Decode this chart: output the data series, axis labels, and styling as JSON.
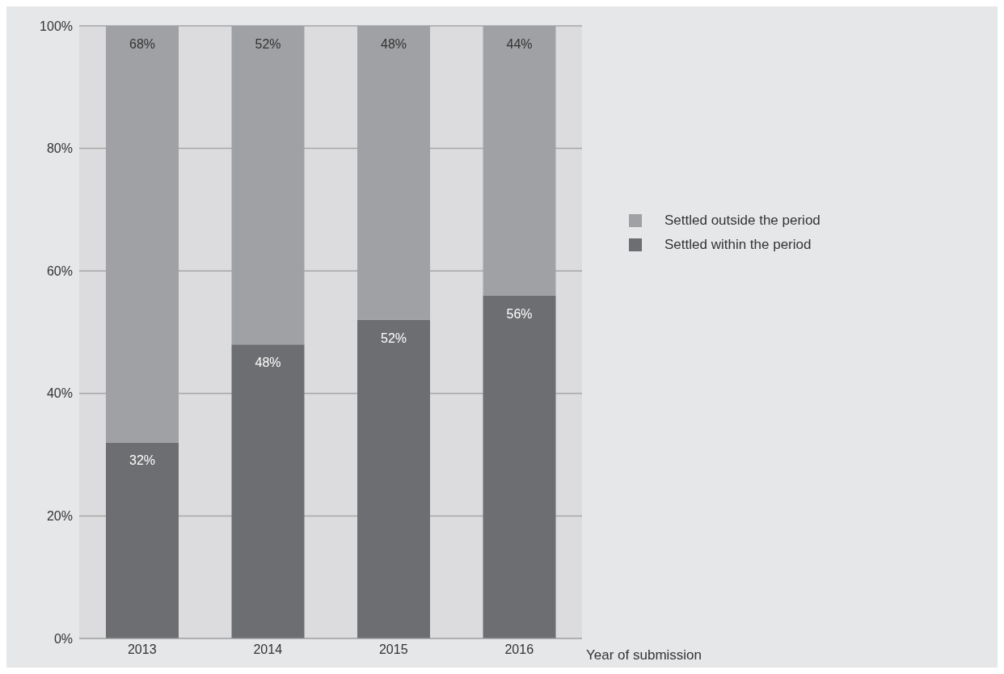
{
  "chart_data": {
    "type": "bar",
    "xlabel": "Year of submission",
    "categories": [
      "2013",
      "2014",
      "2015",
      "2016"
    ],
    "stacked": true,
    "ylim": [
      0,
      100
    ],
    "yticks": [
      {
        "value": 0,
        "label": "0%"
      },
      {
        "value": 20,
        "label": "20%"
      },
      {
        "value": 40,
        "label": "40%"
      },
      {
        "value": 60,
        "label": "60%"
      },
      {
        "value": 80,
        "label": "80%"
      },
      {
        "value": 100,
        "label": "100%"
      }
    ],
    "series": [
      {
        "name": "Settled within the period",
        "color": "#6d6e71",
        "values": [
          32,
          48,
          52,
          56
        ],
        "value_labels": [
          "32%",
          "48%",
          "52%",
          "56%"
        ]
      },
      {
        "name": "Settled outside the period",
        "color": "#a0a1a4",
        "values": [
          68,
          52,
          48,
          44
        ],
        "value_labels": [
          "68%",
          "52%",
          "48%",
          "44%"
        ]
      }
    ],
    "grid": "y",
    "legend": "right"
  }
}
